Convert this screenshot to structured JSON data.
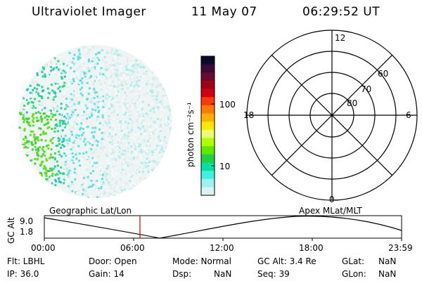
{
  "header": {
    "instrument": "Ultraviolet Imager",
    "date": "11 May 07",
    "time": "06:29:52 UT"
  },
  "colorbar": {
    "label": "photon cm⁻²s⁻¹",
    "ticks": [
      "100",
      "10"
    ],
    "colors": [
      "#0a0a2a",
      "#3a0a3a",
      "#6a0a30",
      "#a00018",
      "#d00010",
      "#ff3a00",
      "#ff7a00",
      "#ffb000",
      "#ffe800",
      "#e8ff70",
      "#b0ff00",
      "#60e800",
      "#20d040",
      "#00e0a0",
      "#40f0e0",
      "#a0f0f0",
      "#d8f4f4"
    ]
  },
  "polar": {
    "labels": {
      "top": "12",
      "bottom": "0",
      "left": "18",
      "right": "6"
    },
    "rings": [
      "60",
      "70",
      "80"
    ]
  },
  "timeline": {
    "ylabel": "GC Alt",
    "y_ticks": [
      "9.0",
      "1.8"
    ],
    "left_label": "Geographic Lat/Lon",
    "right_label": "Apex MLat/MLT",
    "x_ticks": [
      "00:00",
      "06:00",
      "12:00",
      "18:00",
      "23:59"
    ],
    "marker_color": "#cc0000"
  },
  "status": {
    "flt": "Flt: LBHL",
    "ip": "IP: 36.0",
    "door": "Door: Open",
    "gain": "Gain: 14",
    "mode": "Mode: Normal",
    "dsp_label": "Dsp:",
    "dsp_value": "NaN",
    "gcalt": "GC Alt: 3.4 Re",
    "seq": "Seq: 39",
    "glat_label": "GLat:",
    "glat_value": "NaN",
    "glon_label": "GLon:",
    "glon_value": "NaN"
  }
}
